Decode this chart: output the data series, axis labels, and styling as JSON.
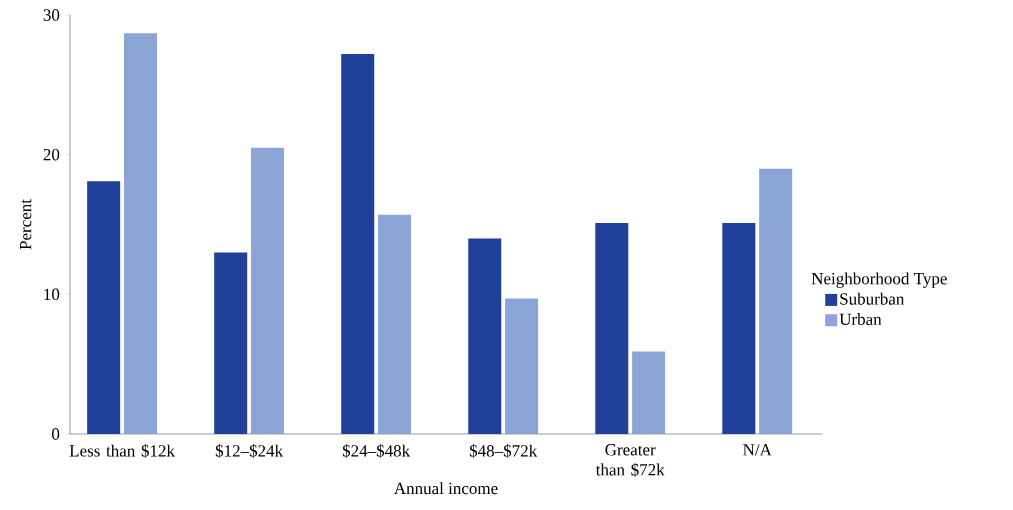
{
  "chart_data": {
    "type": "bar",
    "xlabel": "Annual income",
    "ylabel": "Percent",
    "legend_title": "Neighborhood Type",
    "categories": [
      "Less than $12k",
      "$12–$24k",
      "$24–$48k",
      "$48–$72k",
      "Greater than $72k",
      "N/A"
    ],
    "series": [
      {
        "name": "Suburban",
        "color": "#21409a",
        "values": [
          18.1,
          13.0,
          27.2,
          14.0,
          15.1,
          15.1
        ]
      },
      {
        "name": "Urban",
        "color": "#8aa5d6",
        "values": [
          28.7,
          20.5,
          15.7,
          9.7,
          5.9,
          19.0
        ]
      }
    ],
    "ylim": [
      0,
      30
    ],
    "yticks": [
      0,
      10,
      20,
      30
    ],
    "grid": false,
    "legend": "right"
  }
}
